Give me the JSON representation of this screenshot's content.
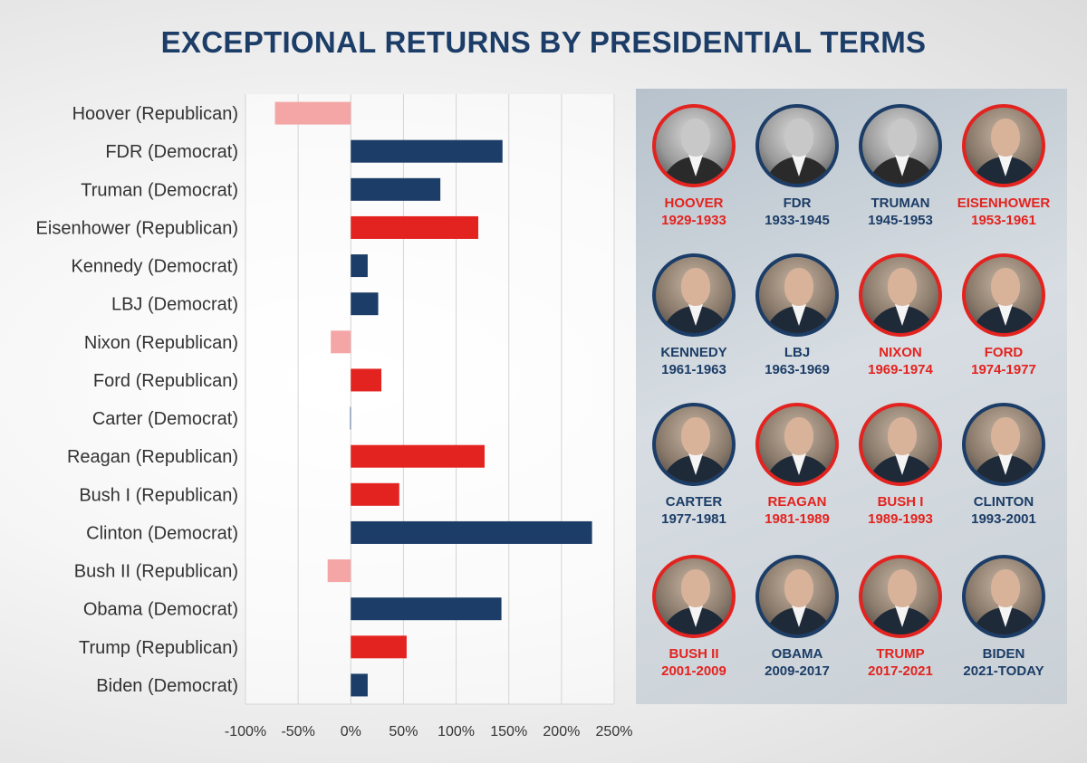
{
  "title": "EXCEPTIONAL RETURNS BY PRESIDENTIAL TERMS",
  "colors": {
    "title": "#1c3d67",
    "democrat": "#1c3d67",
    "republican": "#e3231f",
    "negative": "#f4a6a6",
    "grid": "#d4d4d4"
  },
  "chart_data": {
    "type": "bar",
    "orientation": "horizontal",
    "title": "EXCEPTIONAL RETURNS BY PRESIDENTIAL TERMS",
    "xlabel": "",
    "ylabel": "",
    "xlim": [
      -100,
      250
    ],
    "xticks": [
      -100,
      -50,
      0,
      50,
      100,
      150,
      200,
      250
    ],
    "xtick_labels": [
      "-100%",
      "-50%",
      "0%",
      "50%",
      "100%",
      "150%",
      "200%",
      "250%"
    ],
    "grid": "vertical",
    "legend": "none",
    "categories": [
      "Hoover (Republican)",
      "FDR (Democrat)",
      "Truman (Democrat)",
      "Eisenhower (Republican)",
      "Kennedy (Democrat)",
      "LBJ (Democrat)",
      "Nixon (Republican)",
      "Ford (Republican)",
      "Carter (Democrat)",
      "Reagan (Republican)",
      "Bush I (Republican)",
      "Clinton (Democrat)",
      "Bush II (Republican)",
      "Obama (Democrat)",
      "Trump (Republican)",
      "Biden (Democrat)"
    ],
    "values": [
      -72,
      144,
      85,
      121,
      16,
      26,
      -19,
      29,
      -1,
      127,
      46,
      229,
      -22,
      143,
      53,
      16
    ],
    "party": [
      "R",
      "D",
      "D",
      "R",
      "D",
      "D",
      "R",
      "R",
      "D",
      "R",
      "R",
      "D",
      "R",
      "D",
      "R",
      "D"
    ]
  },
  "presidents": [
    {
      "name": "HOOVER",
      "years": "1929-1933",
      "party": "R",
      "icon": "hoover-portrait",
      "bw": true
    },
    {
      "name": "FDR",
      "years": "1933-1945",
      "party": "D",
      "icon": "fdr-portrait",
      "bw": true
    },
    {
      "name": "TRUMAN",
      "years": "1945-1953",
      "party": "D",
      "icon": "truman-portrait",
      "bw": true
    },
    {
      "name": "EISENHOWER",
      "years": "1953-1961",
      "party": "R",
      "icon": "eisenhower-portrait",
      "bw": false
    },
    {
      "name": "KENNEDY",
      "years": "1961-1963",
      "party": "D",
      "icon": "kennedy-portrait",
      "bw": false
    },
    {
      "name": "LBJ",
      "years": "1963-1969",
      "party": "D",
      "icon": "lbj-portrait",
      "bw": false
    },
    {
      "name": "NIXON",
      "years": "1969-1974",
      "party": "R",
      "icon": "nixon-portrait",
      "bw": false
    },
    {
      "name": "FORD",
      "years": "1974-1977",
      "party": "R",
      "icon": "ford-portrait",
      "bw": false
    },
    {
      "name": "CARTER",
      "years": "1977-1981",
      "party": "D",
      "icon": "carter-portrait",
      "bw": false
    },
    {
      "name": "REAGAN",
      "years": "1981-1989",
      "party": "R",
      "icon": "reagan-portrait",
      "bw": false
    },
    {
      "name": "BUSH I",
      "years": "1989-1993",
      "party": "R",
      "icon": "bush-i-portrait",
      "bw": false
    },
    {
      "name": "CLINTON",
      "years": "1993-2001",
      "party": "D",
      "icon": "clinton-portrait",
      "bw": false
    },
    {
      "name": "BUSH II",
      "years": "2001-2009",
      "party": "R",
      "icon": "bush-ii-portrait",
      "bw": false
    },
    {
      "name": "OBAMA",
      "years": "2009-2017",
      "party": "D",
      "icon": "obama-portrait",
      "bw": false
    },
    {
      "name": "TRUMP",
      "years": "2017-2021",
      "party": "R",
      "icon": "trump-portrait",
      "bw": false
    },
    {
      "name": "BIDEN",
      "years": "2021-TODAY",
      "party": "D",
      "icon": "biden-portrait",
      "bw": false
    }
  ]
}
